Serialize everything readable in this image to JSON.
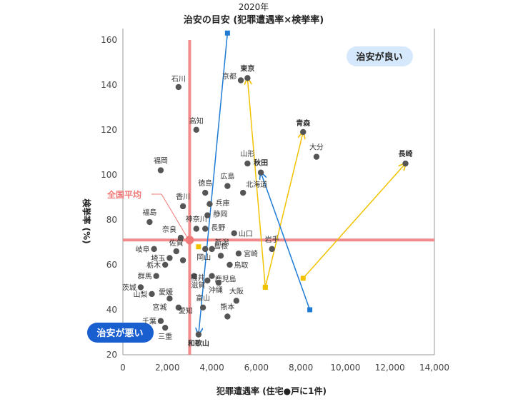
{
  "chart_data": {
    "type": "scatter",
    "title": "治安の目安 (犯罪遭遇率×検挙率)",
    "subtitle": "2020年",
    "xlabel": "犯罪遭遇率 (住宅●戸に1件)",
    "ylabel": "検挙率 (%)",
    "xlim": [
      0,
      14000
    ],
    "ylim": [
      20,
      165
    ],
    "xticks": [
      0,
      2000,
      4000,
      6000,
      8000,
      10000,
      12000,
      14000
    ],
    "xtick_labels": [
      "0",
      "2,000",
      "4,000",
      "6,000",
      "8,000",
      "10,000",
      "12,000",
      "14,000"
    ],
    "yticks": [
      20,
      40,
      60,
      80,
      100,
      120,
      140,
      160
    ],
    "ytick_labels": [
      "20",
      "40",
      "60",
      "80",
      "100",
      "120",
      "140",
      "160"
    ],
    "grid": false,
    "average": {
      "label": "全国平均",
      "x": 3000,
      "y": 71,
      "color": "#f07878"
    },
    "quadrant_labels": {
      "good": "治安が良い",
      "bad": "治安が悪い"
    },
    "points": [
      {
        "name": "石川",
        "x": 2500,
        "y": 139
      },
      {
        "name": "京都",
        "x": 5300,
        "y": 142
      },
      {
        "name": "東京",
        "x": 5600,
        "y": 143,
        "highlight": true,
        "color": "#f2a900"
      },
      {
        "name": "高知",
        "x": 3300,
        "y": 120
      },
      {
        "name": "青森",
        "x": 8100,
        "y": 119,
        "highlight": true,
        "color": "#f2a900"
      },
      {
        "name": "大分",
        "x": 8700,
        "y": 108
      },
      {
        "name": "長崎",
        "x": 12700,
        "y": 105,
        "highlight": true,
        "color": "#f2a900"
      },
      {
        "name": "山形",
        "x": 5600,
        "y": 105
      },
      {
        "name": "秋田",
        "x": 6200,
        "y": 101,
        "highlight": true,
        "color": "#1e7bd4"
      },
      {
        "name": "福岡",
        "x": 1700,
        "y": 102
      },
      {
        "name": "広島",
        "x": 4700,
        "y": 95
      },
      {
        "name": "北海道",
        "x": 5400,
        "y": 92
      },
      {
        "name": "徳島",
        "x": 3700,
        "y": 92
      },
      {
        "name": "香川",
        "x": 2700,
        "y": 86
      },
      {
        "name": "兵庫",
        "x": 3900,
        "y": 87
      },
      {
        "name": "静岡",
        "x": 3800,
        "y": 82
      },
      {
        "name": "福島",
        "x": 1200,
        "y": 79
      },
      {
        "name": "神奈川",
        "x": 3300,
        "y": 76
      },
      {
        "name": "長野",
        "x": 3700,
        "y": 76
      },
      {
        "name": "山口",
        "x": 5000,
        "y": 74
      },
      {
        "name": "奈良",
        "x": 2600,
        "y": 72
      },
      {
        "name": "新潟",
        "x": 4000,
        "y": 67
      },
      {
        "name": "岩手",
        "x": 6700,
        "y": 67
      },
      {
        "name": "佐賀",
        "x": 2400,
        "y": 66
      },
      {
        "name": "岐阜",
        "x": 1400,
        "y": 67
      },
      {
        "name": "島根",
        "x": 4400,
        "y": 64
      },
      {
        "name": "宮崎",
        "x": 5200,
        "y": 65
      },
      {
        "name": "埼玉",
        "x": 2100,
        "y": 63
      },
      {
        "name": "岡山",
        "x": 3700,
        "y": 67
      },
      {
        "name": "栃木",
        "x": 1900,
        "y": 60
      },
      {
        "name": "鳥取",
        "x": 4800,
        "y": 60
      },
      {
        "name": "群馬",
        "x": 1500,
        "y": 55
      },
      {
        "name": "福井",
        "x": 3200,
        "y": 55
      },
      {
        "name": "鹿児島",
        "x": 4000,
        "y": 55
      },
      {
        "name": "滋賀",
        "x": 3800,
        "y": 53
      },
      {
        "name": "茨城",
        "x": 800,
        "y": 50
      },
      {
        "name": "愛媛",
        "x": 2700,
        "y": 62
      },
      {
        "name": "沖縄",
        "x": 4300,
        "y": 52
      },
      {
        "name": "山梨",
        "x": 1300,
        "y": 47
      },
      {
        "name": "大阪",
        "x": 5100,
        "y": 44
      },
      {
        "name": "宮城",
        "x": 2100,
        "y": 45
      },
      {
        "name": "富山",
        "x": 3600,
        "y": 41
      },
      {
        "name": "愛知",
        "x": 2500,
        "y": 41
      },
      {
        "name": "熊本",
        "x": 4700,
        "y": 37
      },
      {
        "name": "千葉",
        "x": 1700,
        "y": 35
      },
      {
        "name": "三重",
        "x": 1900,
        "y": 32
      },
      {
        "name": "和歌山",
        "x": 3400,
        "y": 29,
        "highlight": true,
        "color": "#1e7bd4"
      }
    ],
    "movements": [
      {
        "name": "東京",
        "from": [
          6400,
          50
        ],
        "to": [
          5600,
          143
        ],
        "color": "#f2c200"
      },
      {
        "name": "青森",
        "from": [
          6400,
          50
        ],
        "to": [
          8100,
          119
        ],
        "color": "#f2c200"
      },
      {
        "name": "長崎",
        "from": [
          8100,
          54
        ],
        "to": [
          12700,
          105
        ],
        "color": "#f2c200"
      },
      {
        "name": "秋田",
        "from": [
          8400,
          40
        ],
        "to": [
          6200,
          101
        ],
        "color": "#1e7bd4"
      },
      {
        "name": "和歌山",
        "from": [
          4700,
          163
        ],
        "to": [
          3400,
          29
        ],
        "color": "#1e7bd4"
      }
    ],
    "extra_markers": [
      {
        "x": 3400,
        "y": 68,
        "color": "#f2c200"
      }
    ]
  }
}
